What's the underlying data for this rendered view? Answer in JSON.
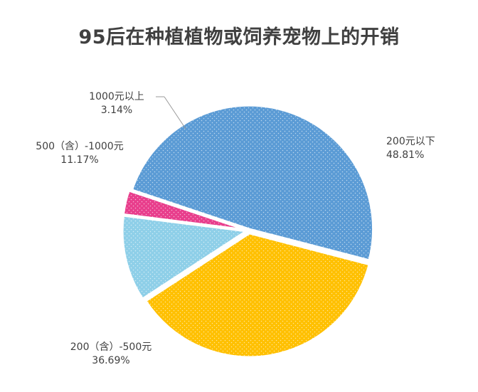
{
  "chart_data": {
    "type": "pie",
    "title": "95后在种植植物或饲养宠物上的开销",
    "slices": [
      {
        "label": "200元以下",
        "value": 48.81,
        "value_label": "48.81%",
        "color": "#5B9BD5"
      },
      {
        "label": "200（含）-500元",
        "value": 36.69,
        "value_label": "36.69%",
        "color": "#FFC000"
      },
      {
        "label": "500（含）-1000元",
        "value": 11.17,
        "value_label": "11.17%",
        "color": "#8ECFE8"
      },
      {
        "label": "1000元以上",
        "value": 3.14,
        "value_label": "3.14%",
        "color": "#E83E8C"
      }
    ]
  }
}
